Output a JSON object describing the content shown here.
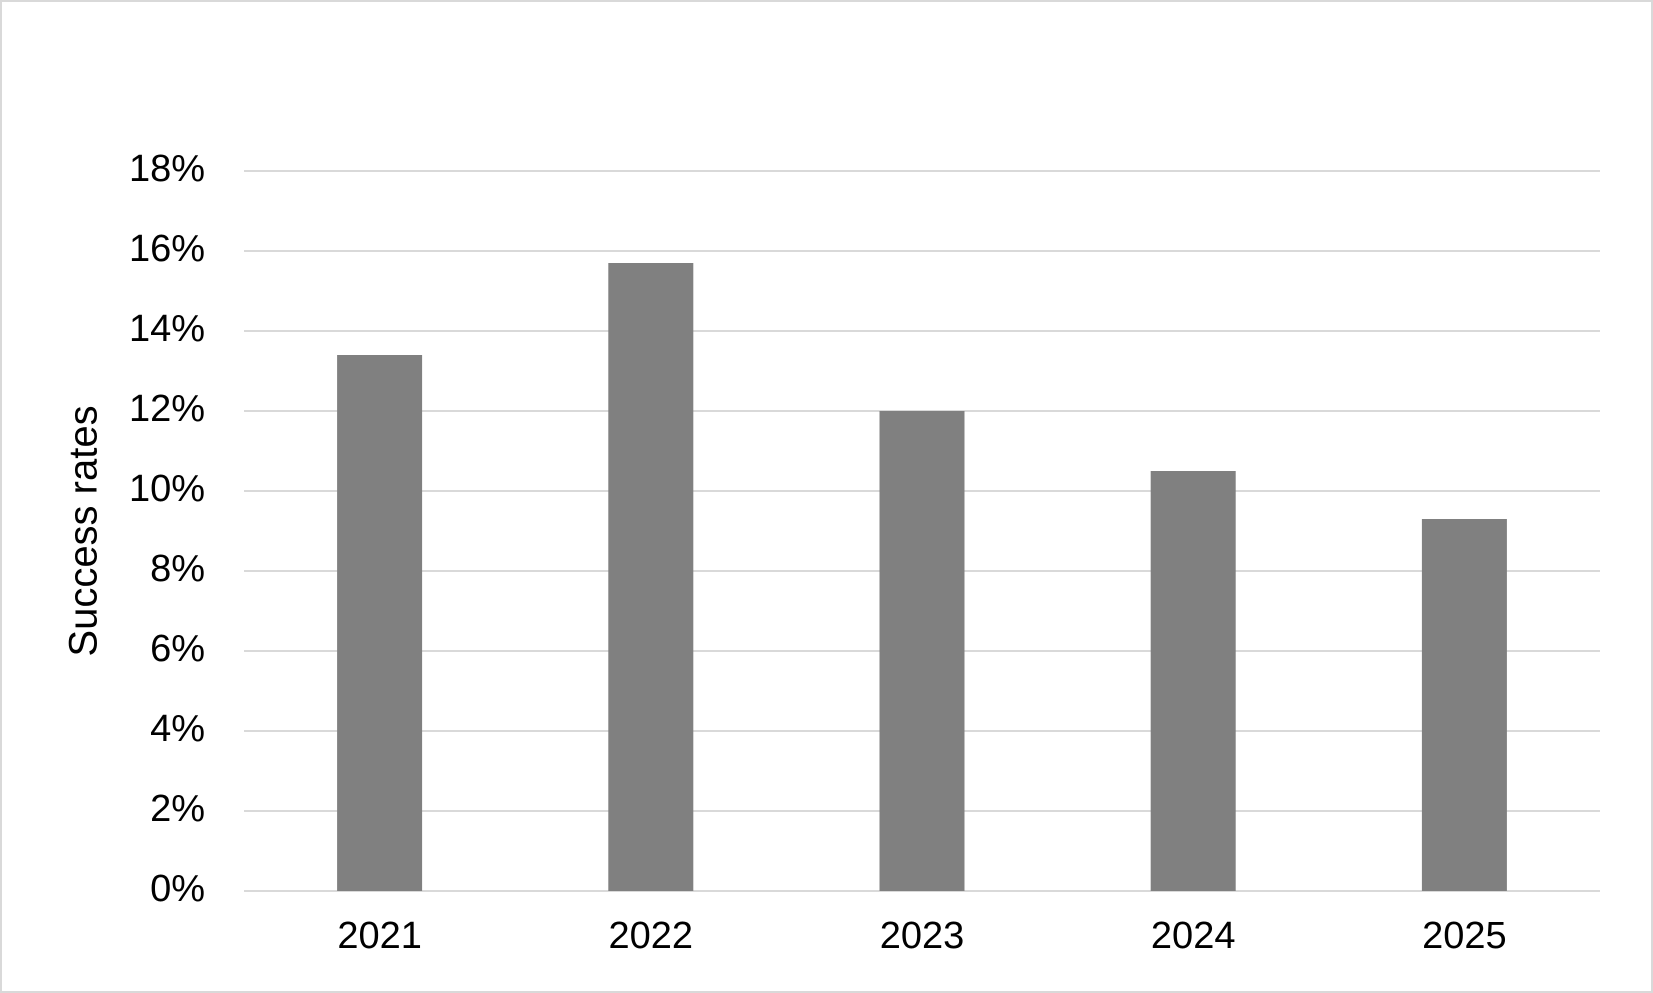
{
  "chart_data": {
    "type": "bar",
    "y_label": "Success rates",
    "categories": [
      "2021",
      "2022",
      "2023",
      "2024",
      "2025"
    ],
    "values": [
      13.4,
      15.7,
      12.0,
      10.5,
      9.3
    ],
    "color": "#808080",
    "ylim": [
      0,
      18
    ],
    "yticks": [
      {
        "value": 0,
        "label": "0%"
      },
      {
        "value": 2,
        "label": "2%"
      },
      {
        "value": 4,
        "label": "4%"
      },
      {
        "value": 6,
        "label": "6%"
      },
      {
        "value": 8,
        "label": "8%"
      },
      {
        "value": 10,
        "label": "10%"
      },
      {
        "value": 12,
        "label": "12%"
      },
      {
        "value": 14,
        "label": "14%"
      },
      {
        "value": 16,
        "label": "16%"
      },
      {
        "value": 18,
        "label": "18%"
      }
    ],
    "grid": true
  }
}
